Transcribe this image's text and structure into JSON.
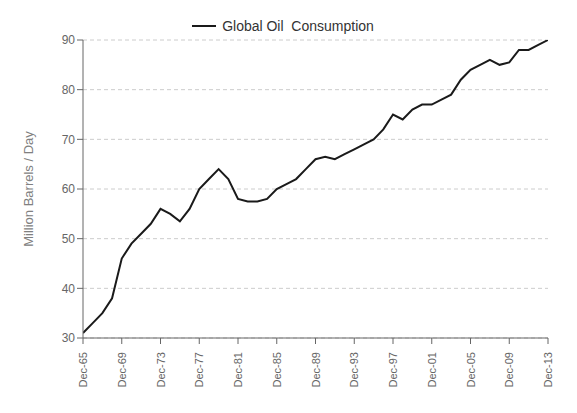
{
  "chart_data": {
    "type": "line",
    "ylabel": "Million Barrels / Day",
    "x": [
      1965,
      1966,
      1967,
      1968,
      1969,
      1970,
      1971,
      1972,
      1973,
      1974,
      1975,
      1976,
      1977,
      1978,
      1979,
      1980,
      1981,
      1982,
      1983,
      1984,
      1985,
      1986,
      1987,
      1988,
      1989,
      1990,
      1991,
      1992,
      1993,
      1994,
      1995,
      1996,
      1997,
      1998,
      1999,
      2000,
      2001,
      2002,
      2003,
      2004,
      2005,
      2006,
      2007,
      2008,
      2009,
      2010,
      2011,
      2012,
      2013
    ],
    "series": [
      {
        "name": "Global Oil  Consumption",
        "color": "#1a1a1a",
        "values": [
          31,
          33,
          35,
          38,
          46,
          49,
          51,
          53,
          56,
          55,
          53.5,
          56,
          60,
          62,
          64,
          62,
          58,
          57.5,
          57.5,
          58,
          60,
          61,
          62,
          64,
          66,
          66.5,
          66,
          67,
          68,
          69,
          70,
          72,
          75,
          74,
          76,
          77,
          77,
          78,
          79,
          82,
          84,
          85,
          86,
          85,
          85.5,
          88,
          88,
          89,
          90
        ]
      }
    ],
    "xlim": [
      1965,
      2013
    ],
    "xticks": [
      {
        "value": 1965,
        "label": "Dec-65"
      },
      {
        "value": 1969,
        "label": "Dec-69"
      },
      {
        "value": 1973,
        "label": "Dec-73"
      },
      {
        "value": 1977,
        "label": "Dec-77"
      },
      {
        "value": 1981,
        "label": "Dec-81"
      },
      {
        "value": 1985,
        "label": "Dec-85"
      },
      {
        "value": 1989,
        "label": "Dec-89"
      },
      {
        "value": 1993,
        "label": "Dec-93"
      },
      {
        "value": 1997,
        "label": "Dec-97"
      },
      {
        "value": 2001,
        "label": "Dec-01"
      },
      {
        "value": 2005,
        "label": "Dec-05"
      },
      {
        "value": 2009,
        "label": "Dec-09"
      },
      {
        "value": 2013,
        "label": "Dec-13"
      }
    ],
    "ylim": [
      30,
      90
    ],
    "yticks": [
      30,
      40,
      50,
      60,
      70,
      80,
      90
    ],
    "grid": "y",
    "legend": "top"
  }
}
